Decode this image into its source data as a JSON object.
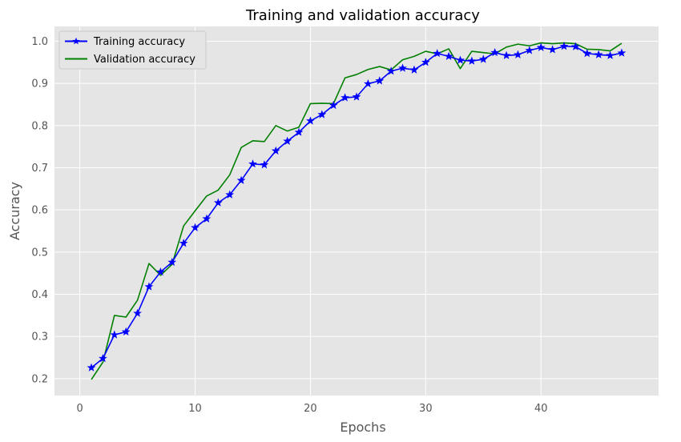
{
  "chart_data": {
    "type": "line",
    "title": "Training and validation accuracy",
    "xlabel": "Epochs",
    "ylabel": "Accuracy",
    "xlim": [
      -2.2,
      50.2
    ],
    "ylim": [
      0.16,
      1.035
    ],
    "xticks": [
      0,
      10,
      20,
      30,
      40
    ],
    "yticks": [
      0.2,
      0.3,
      0.4,
      0.5,
      0.6,
      0.7,
      0.8,
      0.9,
      1.0
    ],
    "grid": true,
    "legend_position": "top-left",
    "background_color": "#e5e5e5",
    "x": [
      1,
      2,
      3,
      4,
      5,
      6,
      7,
      8,
      9,
      10,
      11,
      12,
      13,
      14,
      15,
      16,
      17,
      18,
      19,
      20,
      21,
      22,
      23,
      24,
      25,
      26,
      27,
      28,
      29,
      30,
      31,
      32,
      33,
      34,
      35,
      36,
      37,
      38,
      39,
      40,
      41,
      42,
      43,
      44,
      45,
      46,
      47
    ],
    "series": [
      {
        "name": "Training accuracy",
        "color": "#0000ff",
        "marker": "star",
        "values": [
          0.226,
          0.248,
          0.304,
          0.311,
          0.355,
          0.418,
          0.453,
          0.476,
          0.521,
          0.558,
          0.579,
          0.617,
          0.636,
          0.67,
          0.709,
          0.707,
          0.74,
          0.763,
          0.784,
          0.811,
          0.826,
          0.848,
          0.866,
          0.868,
          0.899,
          0.906,
          0.929,
          0.936,
          0.932,
          0.95,
          0.971,
          0.964,
          0.955,
          0.953,
          0.957,
          0.973,
          0.966,
          0.968,
          0.978,
          0.985,
          0.98,
          0.988,
          0.987,
          0.971,
          0.968,
          0.966,
          0.972
        ]
      },
      {
        "name": "Validation accuracy",
        "color": "#008000",
        "marker": "none",
        "values": [
          0.198,
          0.239,
          0.35,
          0.346,
          0.386,
          0.473,
          0.445,
          0.471,
          0.562,
          0.598,
          0.633,
          0.647,
          0.683,
          0.748,
          0.764,
          0.762,
          0.8,
          0.787,
          0.796,
          0.852,
          0.853,
          0.852,
          0.913,
          0.921,
          0.933,
          0.94,
          0.932,
          0.956,
          0.964,
          0.976,
          0.97,
          0.982,
          0.935,
          0.976,
          0.973,
          0.97,
          0.986,
          0.993,
          0.989,
          0.996,
          0.994,
          0.996,
          0.994,
          0.981,
          0.98,
          0.977,
          0.995
        ]
      }
    ]
  }
}
